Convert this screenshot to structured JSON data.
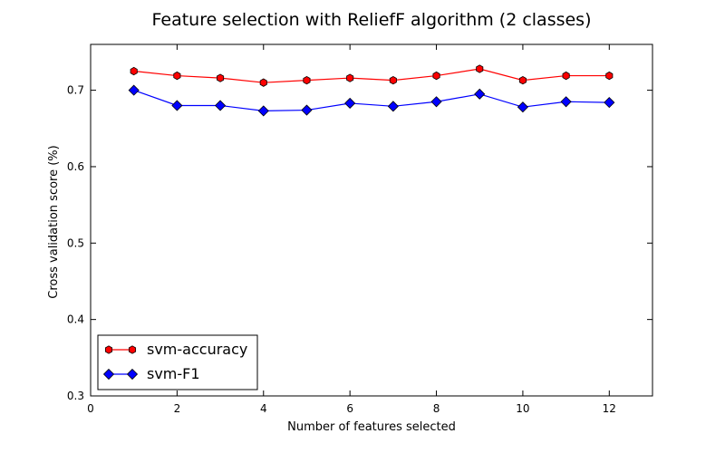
{
  "chart_data": {
    "type": "line",
    "title": "Feature selection with ReliefF algorithm (2 classes)",
    "xlabel": "Number of features selected",
    "ylabel": "Cross validation score (%)",
    "xlim": [
      0,
      13
    ],
    "ylim": [
      0.3,
      0.76
    ],
    "x_ticks": [
      0,
      2,
      4,
      6,
      8,
      10,
      12
    ],
    "y_ticks": [
      0.3,
      0.4,
      0.5,
      0.6,
      0.7
    ],
    "grid": false,
    "legend_position": "lower-left",
    "x": [
      1,
      2,
      3,
      4,
      5,
      6,
      7,
      8,
      9,
      10,
      11,
      12
    ],
    "series": [
      {
        "name": "svm-accuracy",
        "color": "#ff0000",
        "marker": "hexagon",
        "values": [
          0.725,
          0.719,
          0.716,
          0.71,
          0.713,
          0.716,
          0.713,
          0.719,
          0.728,
          0.713,
          0.719,
          0.719
        ]
      },
      {
        "name": "svm-F1",
        "color": "#0000ff",
        "marker": "diamond",
        "values": [
          0.7,
          0.68,
          0.68,
          0.673,
          0.674,
          0.683,
          0.679,
          0.685,
          0.695,
          0.678,
          0.685,
          0.684
        ]
      }
    ]
  }
}
